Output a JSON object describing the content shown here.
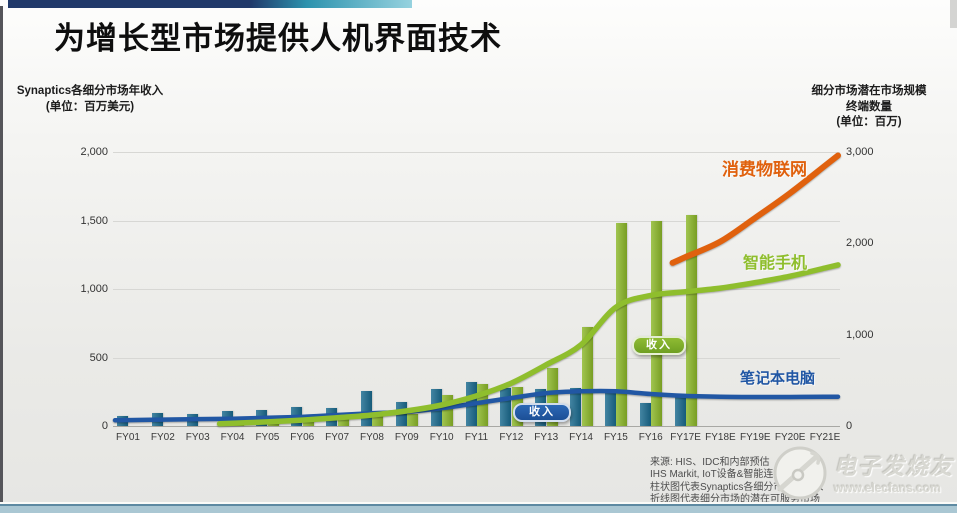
{
  "slide": {
    "title": "为增长型市场提供人机界面技术",
    "source_lines": [
      "来源: HIS、IDC和内部预估",
      "IHS Markit, IoT设备&智能连接服务, 20",
      "柱状图代表Synaptics各细分市场年收入",
      "折线图代表细分市场的潜在可服务市场"
    ],
    "watermark": {
      "brand": "电子发烧友",
      "site": "www.elecfans.com"
    }
  },
  "axis_titles": {
    "left": [
      "Synaptics各细分市场年收入",
      "(单位：百万美元)"
    ],
    "right": [
      "细分市场潜在市场规模",
      "终端数量",
      "(单位：百万)"
    ]
  },
  "annotations": {
    "revenue_pill_blue": "收入",
    "revenue_pill_green": "收入",
    "line_labels": {
      "consumer_iot": "消费物联网",
      "smartphone": "智能手机",
      "notebook": "笔记本电脑"
    }
  },
  "colors": {
    "bar_blue": "#1a6a8e",
    "bar_green": "#8cb829",
    "line_blue": "#2157a4",
    "line_green": "#8fbe2d",
    "line_orange": "#e0610e",
    "top_bar_navy": "#20396a",
    "top_bar_teal": "#2d93ae",
    "bottom_stripe": "#aac7d3"
  },
  "chart_data": {
    "type": "bar+line",
    "title": "为增长型市场提供人机界面技术",
    "categories": [
      "FY01",
      "FY02",
      "FY03",
      "FY04",
      "FY05",
      "FY06",
      "FY07",
      "FY08",
      "FY09",
      "FY10",
      "FY11",
      "FY12",
      "FY13",
      "FY14",
      "FY15",
      "FY16",
      "FY17E",
      "FY18E",
      "FY19E",
      "FY20E",
      "FY21E"
    ],
    "left_axis": {
      "label": "Synaptics各细分市场年收入 (单位：百万美元)",
      "min": 0,
      "max": 2000,
      "ticks": [
        2000,
        1500,
        1000,
        500,
        0
      ],
      "grid": true
    },
    "right_axis": {
      "label": "细分市场潜在市场规模 终端数量 (单位：百万)",
      "min": 0,
      "max": 3000,
      "ticks": [
        3000,
        2000,
        1000,
        0
      ],
      "grid": false
    },
    "bar_series": [
      {
        "name": "笔记本电脑收入",
        "axis": "left",
        "color": "#1a6a8e",
        "values": [
          75,
          95,
          90,
          110,
          115,
          140,
          135,
          255,
          175,
          270,
          320,
          275,
          270,
          280,
          245,
          170,
          210,
          null,
          null,
          null,
          null
        ]
      },
      {
        "name": "智能手机收入",
        "axis": "left",
        "color": "#8cb829",
        "values": [
          null,
          null,
          null,
          20,
          40,
          55,
          70,
          90,
          85,
          225,
          305,
          285,
          420,
          720,
          1480,
          1500,
          1540,
          null,
          null,
          null,
          null
        ]
      }
    ],
    "line_series": [
      {
        "name": "笔记本电脑",
        "axis": "right",
        "color": "#2157a4",
        "width": 4.5,
        "values": [
          65,
          70,
          75,
          80,
          90,
          100,
          120,
          140,
          155,
          195,
          250,
          307,
          360,
          380,
          380,
          350,
          330,
          320,
          318,
          318,
          320
        ]
      },
      {
        "name": "智能手机",
        "axis": "right",
        "color": "#8fbe2d",
        "width": 5.5,
        "values": [
          null,
          null,
          null,
          30,
          45,
          65,
          90,
          120,
          165,
          230,
          330,
          470,
          670,
          890,
          1300,
          1430,
          1470,
          1510,
          1570,
          1640,
          1730
        ]
      },
      {
        "name": "消费物联网",
        "axis": "right",
        "color": "#e0610e",
        "width": 6,
        "values": [
          null,
          null,
          null,
          null,
          null,
          null,
          null,
          null,
          null,
          null,
          null,
          null,
          null,
          null,
          null,
          null,
          1850,
          2020,
          2280,
          2550,
          2850
        ]
      }
    ],
    "legend_position": "inline-right-labels"
  }
}
